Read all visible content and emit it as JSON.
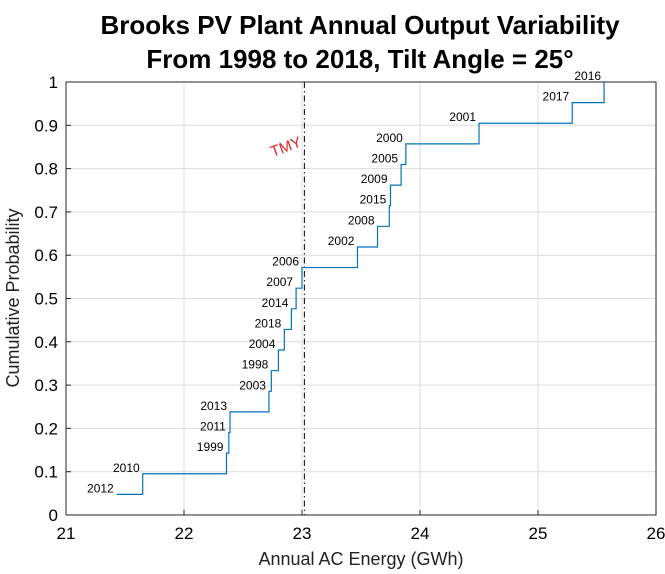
{
  "chart_data": {
    "type": "line",
    "subtype": "empirical-cdf-step",
    "title_line1": "Brooks PV Plant Annual Output Variability",
    "title_line2": "From 1998 to 2018, Tilt Angle = 25°",
    "xlabel": "Annual AC Energy (GWh)",
    "ylabel": "Cumulative Probability",
    "xlim": [
      21,
      26
    ],
    "ylim": [
      0,
      1
    ],
    "xticks": [
      "21",
      "22",
      "23",
      "24",
      "25",
      "26"
    ],
    "yticks": [
      "0",
      "0.1",
      "0.2",
      "0.3",
      "0.4",
      "0.5",
      "0.6",
      "0.7",
      "0.8",
      "0.9",
      "1"
    ],
    "grid": true,
    "line_color": "#0072BD",
    "tmy": {
      "label": "TMY",
      "x": 23.02,
      "color": "#e02020"
    },
    "points": [
      {
        "year": "2012",
        "x": 21.43,
        "y": 0.0476
      },
      {
        "year": "2010",
        "x": 21.65,
        "y": 0.0952
      },
      {
        "year": "1999",
        "x": 22.36,
        "y": 0.1429
      },
      {
        "year": "2011",
        "x": 22.38,
        "y": 0.1905
      },
      {
        "year": "2013",
        "x": 22.39,
        "y": 0.2381
      },
      {
        "year": "2003",
        "x": 22.72,
        "y": 0.2857
      },
      {
        "year": "1998",
        "x": 22.74,
        "y": 0.3333
      },
      {
        "year": "2004",
        "x": 22.8,
        "y": 0.381
      },
      {
        "year": "2018",
        "x": 22.85,
        "y": 0.4286
      },
      {
        "year": "2014",
        "x": 22.91,
        "y": 0.4762
      },
      {
        "year": "2007",
        "x": 22.95,
        "y": 0.5238
      },
      {
        "year": "2006",
        "x": 23.0,
        "y": 0.5714
      },
      {
        "year": "2002",
        "x": 23.47,
        "y": 0.619
      },
      {
        "year": "2008",
        "x": 23.64,
        "y": 0.6667
      },
      {
        "year": "2015",
        "x": 23.74,
        "y": 0.7143
      },
      {
        "year": "2009",
        "x": 23.75,
        "y": 0.7619
      },
      {
        "year": "2005",
        "x": 23.84,
        "y": 0.8095
      },
      {
        "year": "2000",
        "x": 23.88,
        "y": 0.8571
      },
      {
        "year": "2001",
        "x": 24.5,
        "y": 0.9048
      },
      {
        "year": "2017",
        "x": 25.29,
        "y": 0.9524
      },
      {
        "year": "2016",
        "x": 25.56,
        "y": 1.0
      }
    ]
  }
}
